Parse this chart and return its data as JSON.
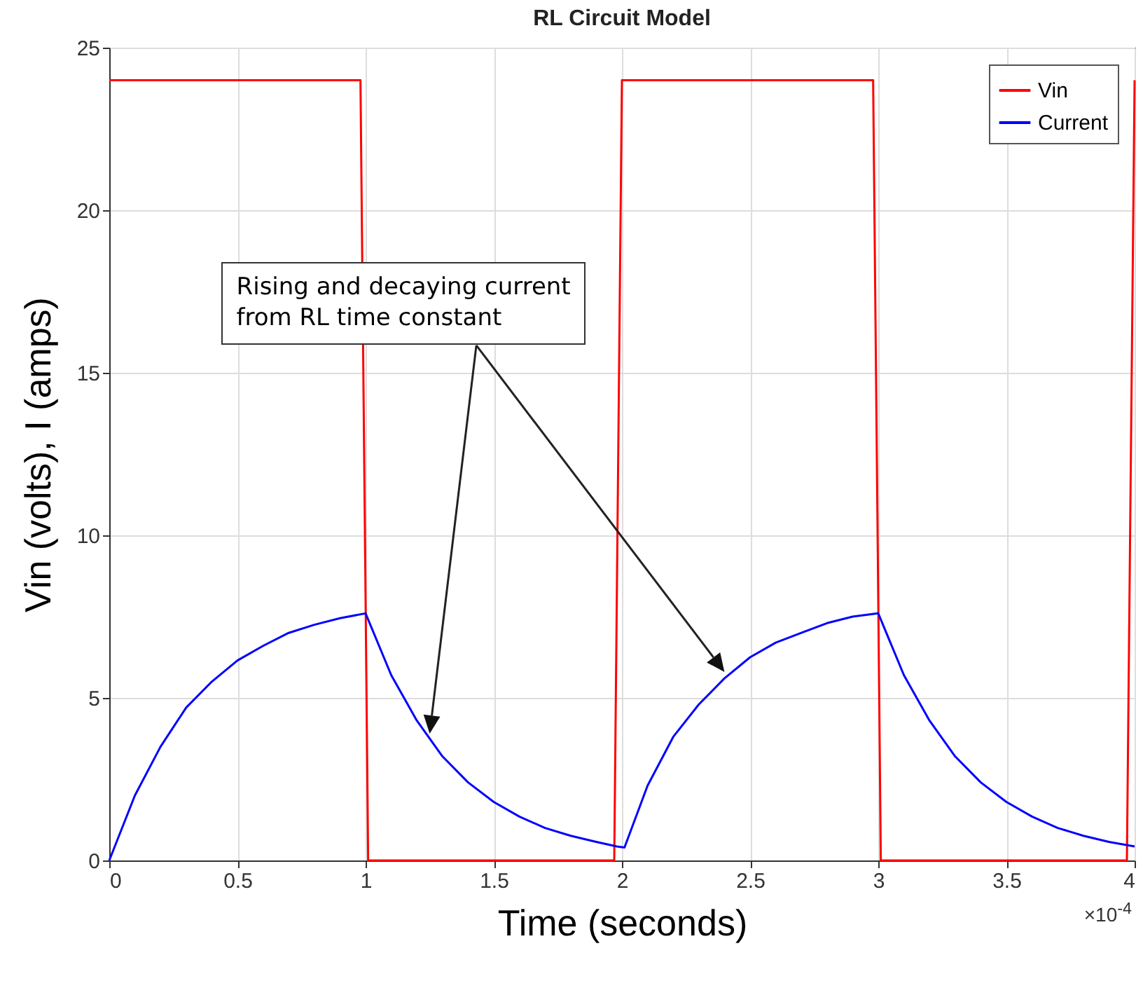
{
  "chart_data": {
    "type": "line",
    "title": "RL Circuit Model",
    "xlabel": "Time (seconds)",
    "ylabel": "Vin (volts), I (amps)",
    "annotations": [
      "Rising and decaying current\nfrom RL time constant",
      "×10$^{-4}$"
    ],
    "series": [
      {
        "name": "Vin",
        "color": "#ff0000",
        "x": [
          0,
          0.98,
          1.01,
          1.97,
          2.0,
          2.98,
          3.01,
          3.97,
          4.0
        ],
        "values": [
          24,
          24,
          0,
          0,
          24,
          24,
          0,
          0,
          24
        ]
      },
      {
        "name": "Current",
        "color": "#0000ff",
        "x": [
          0,
          0.1,
          0.2,
          0.3,
          0.4,
          0.5,
          0.6,
          0.7,
          0.8,
          0.9,
          1.0,
          1.1,
          1.2,
          1.3,
          1.4,
          1.5,
          1.6,
          1.7,
          1.8,
          1.9,
          1.98,
          2.01,
          2.1,
          2.2,
          2.3,
          2.4,
          2.5,
          2.6,
          2.7,
          2.8,
          2.9,
          3.0,
          3.1,
          3.2,
          3.3,
          3.4,
          3.5,
          3.6,
          3.7,
          3.8,
          3.9,
          4.0
        ],
        "values": [
          0,
          2.0,
          3.5,
          4.7,
          5.5,
          6.15,
          6.6,
          7.0,
          7.25,
          7.45,
          7.6,
          5.7,
          4.3,
          3.2,
          2.4,
          1.8,
          1.35,
          1.0,
          0.76,
          0.57,
          0.43,
          0.4,
          2.3,
          3.8,
          4.8,
          5.6,
          6.25,
          6.7,
          7.0,
          7.3,
          7.5,
          7.6,
          5.7,
          4.3,
          3.2,
          2.4,
          1.8,
          1.35,
          1.0,
          0.76,
          0.57,
          0.43
        ]
      }
    ],
    "xlim": [
      0,
      4
    ],
    "xticks": [
      0,
      0.5,
      1,
      1.5,
      2,
      2.5,
      3,
      3.5,
      4
    ],
    "ylim": [
      0,
      25
    ],
    "yticks": [
      0,
      5,
      10,
      15,
      20,
      25
    ],
    "grid": true,
    "legend": "top right",
    "line_style": "solid",
    "marker": "none"
  }
}
